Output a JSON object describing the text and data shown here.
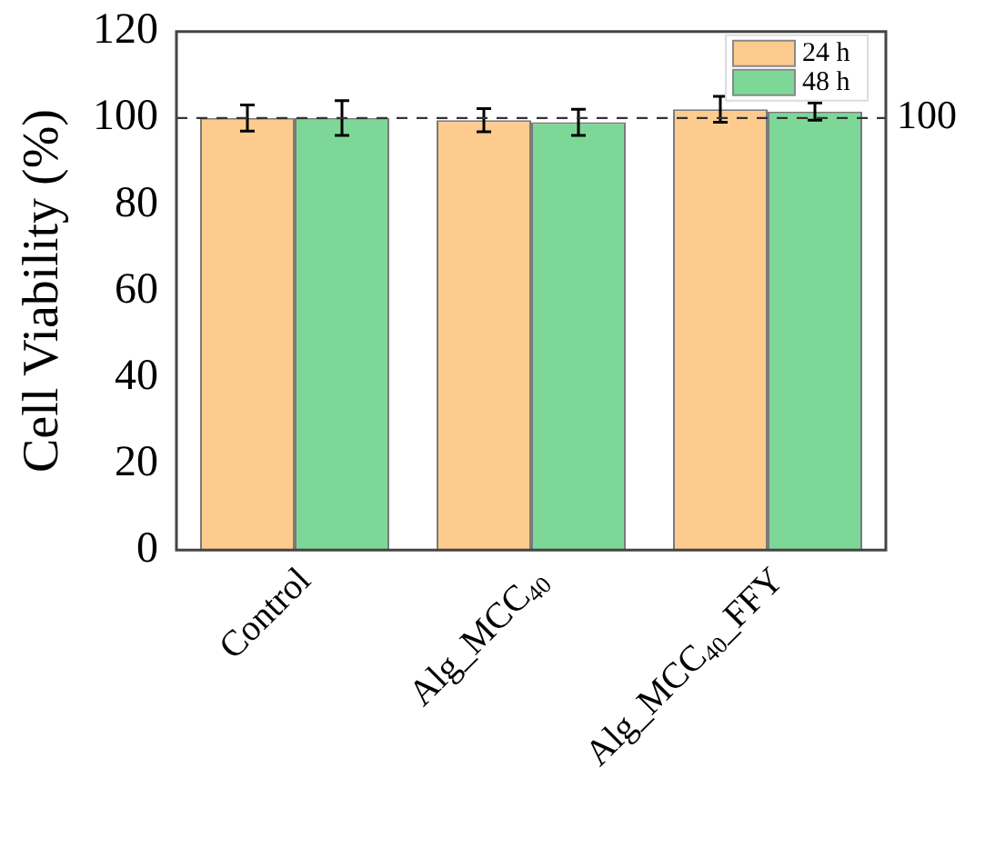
{
  "chart_data": {
    "type": "bar",
    "ylabel": "Cell Viability (%)",
    "categories": [
      "Control",
      "Alg_MCC$_{40}$",
      "Alg_MCC$_{40}$_FFY"
    ],
    "series": [
      {
        "name": "24 h",
        "color": "#fecb8f",
        "values": [
          100,
          99.5,
          102
        ],
        "errors": [
          3,
          2.7,
          3
        ]
      },
      {
        "name": "48 h",
        "color": "#7dd897",
        "values": [
          100,
          99,
          101.5
        ],
        "errors": [
          4,
          3,
          2
        ]
      }
    ],
    "ylim": [
      0,
      120
    ],
    "yticks": [
      0,
      20,
      40,
      60,
      80,
      100,
      120
    ],
    "grid": false,
    "legend": "top right",
    "ref_lines": [
      {
        "axis": "y",
        "value": 100,
        "label": "100",
        "line_style": "dashed"
      }
    ]
  }
}
